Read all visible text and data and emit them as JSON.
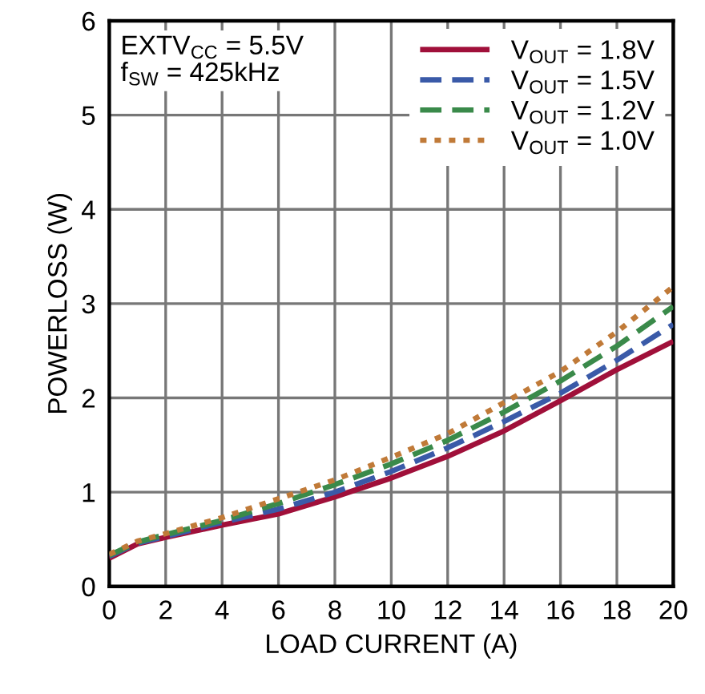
{
  "chart_data": {
    "type": "line",
    "xlabel": "LOAD CURRENT (A)",
    "ylabel": "POWERLOSS (W)",
    "x": [
      0,
      1,
      2,
      4,
      6,
      8,
      10,
      12,
      14,
      16,
      18,
      20
    ],
    "series": [
      {
        "name": "V$_{OUT}$ = 1.8V",
        "color": "#a0103a",
        "line_style": "solid",
        "values": [
          0.3,
          0.45,
          0.52,
          0.65,
          0.77,
          0.95,
          1.15,
          1.38,
          1.65,
          1.97,
          2.3,
          2.6
        ]
      },
      {
        "name": "V$_{OUT}$ = 1.5V",
        "color": "#3a5aa8",
        "line_style": "dashed",
        "values": [
          0.32,
          0.46,
          0.53,
          0.68,
          0.82,
          1.0,
          1.22,
          1.47,
          1.75,
          2.05,
          2.4,
          2.78
        ]
      },
      {
        "name": "V$_{OUT}$ = 1.2V",
        "color": "#3a8a4a",
        "line_style": "dashed",
        "values": [
          0.33,
          0.47,
          0.55,
          0.7,
          0.88,
          1.08,
          1.3,
          1.55,
          1.85,
          2.18,
          2.55,
          2.97
        ]
      },
      {
        "name": "V$_{OUT}$ = 1.0V",
        "color": "#c07a38",
        "line_style": "dotted",
        "values": [
          0.34,
          0.48,
          0.56,
          0.73,
          0.93,
          1.13,
          1.37,
          1.62,
          1.95,
          2.28,
          2.7,
          3.18
        ]
      }
    ],
    "annotations": [
      "EXTV$_{CC}$ = 5.5V\nf$_{SW}$ = 425kHz"
    ],
    "xlim": [
      0,
      20
    ],
    "ylim": [
      0,
      6
    ],
    "xticks": [
      0,
      2,
      4,
      6,
      8,
      10,
      12,
      14,
      16,
      18,
      20
    ],
    "yticks": [
      0,
      1,
      2,
      3,
      4,
      5,
      6
    ],
    "grid": true,
    "legend": "top right",
    "marker": "none"
  }
}
